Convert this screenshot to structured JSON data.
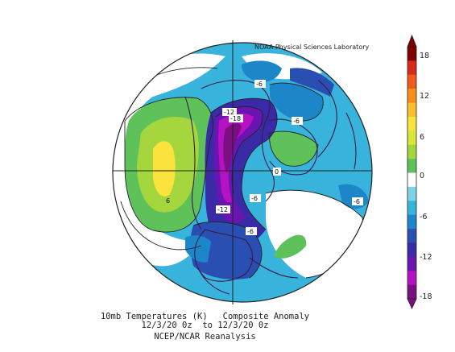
{
  "credit": "NOAA Physical Sciences Laboratory",
  "caption": {
    "line1": "10mb Temperatures (K)   Composite Anomaly",
    "line2": "12/3/20 0z  to 12/3/20 0z",
    "line3": "NCEP/NCAR Reanalysis"
  },
  "colorbar": {
    "labels": [
      "18",
      "12",
      "6",
      "0",
      "-6",
      "-12",
      "-18"
    ],
    "colors": [
      "#800000",
      "#d72a1c",
      "#ee5a1c",
      "#f78e1b",
      "#fbbe2e",
      "#fae33c",
      "#d7e83a",
      "#a6d63d",
      "#5fc15a",
      "#ffffff",
      "#7fd3e6",
      "#38b3dc",
      "#1d86c8",
      "#2a4fb3",
      "#3b2aa6",
      "#6a14b2",
      "#b512c4",
      "#7a0e82"
    ]
  },
  "map_labels": {
    "n12": "-12",
    "n18": "-18",
    "n6a": "-6",
    "n6b": "-6",
    "n6c": "-6",
    "n6d": "-6",
    "n12b": "-12",
    "n6e": "-6",
    "p6": "6",
    "z0": "0"
  }
}
